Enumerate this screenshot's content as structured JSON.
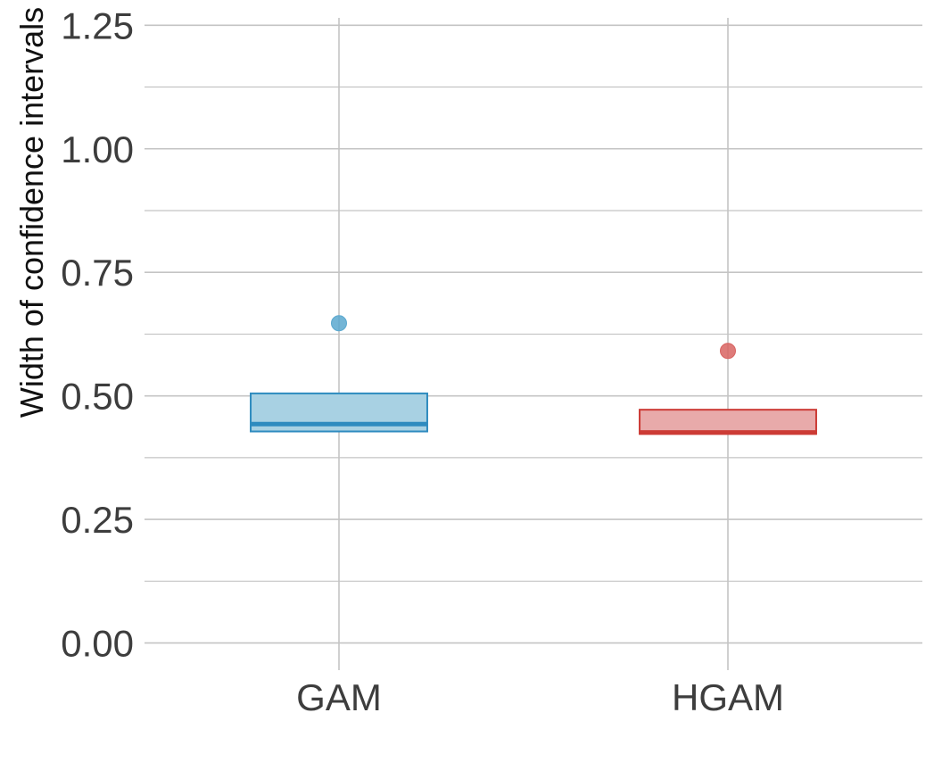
{
  "chart_data": {
    "type": "boxplot",
    "title": "",
    "xlabel": "",
    "ylabel": "Width of confidence intervals",
    "ylim": [
      -0.055,
      1.265
    ],
    "y_ticks": [
      0.0,
      0.25,
      0.5,
      0.75,
      1.0,
      1.25
    ],
    "y_tick_labels": [
      "0.00",
      "0.25",
      "0.50",
      "0.75",
      "1.00",
      "1.25"
    ],
    "y_minor_ticks": [
      0.125,
      0.375,
      0.625,
      0.875,
      1.125
    ],
    "grid": true,
    "categories": [
      "GAM",
      "HGAM"
    ],
    "boxes": [
      {
        "category": "GAM",
        "q1": 0.428,
        "median": 0.443,
        "q3": 0.505,
        "whisker_low": 0.428,
        "whisker_high": 0.505,
        "outliers": [
          0.647
        ],
        "fill": "#a8d1e3",
        "stroke": "#2e8bbf",
        "outlier_color": "#5aa8cf"
      },
      {
        "category": "HGAM",
        "q1": 0.423,
        "median": 0.426,
        "q3": 0.472,
        "whisker_low": 0.423,
        "whisker_high": 0.472,
        "outliers": [
          0.591
        ],
        "fill": "#e8aaaa",
        "stroke": "#cc3b35",
        "outlier_color": "#d86462"
      }
    ],
    "colors": {
      "grid": "#c4c4c4",
      "tick_text": "#3d3d3d",
      "axis_title": "#111111"
    }
  }
}
